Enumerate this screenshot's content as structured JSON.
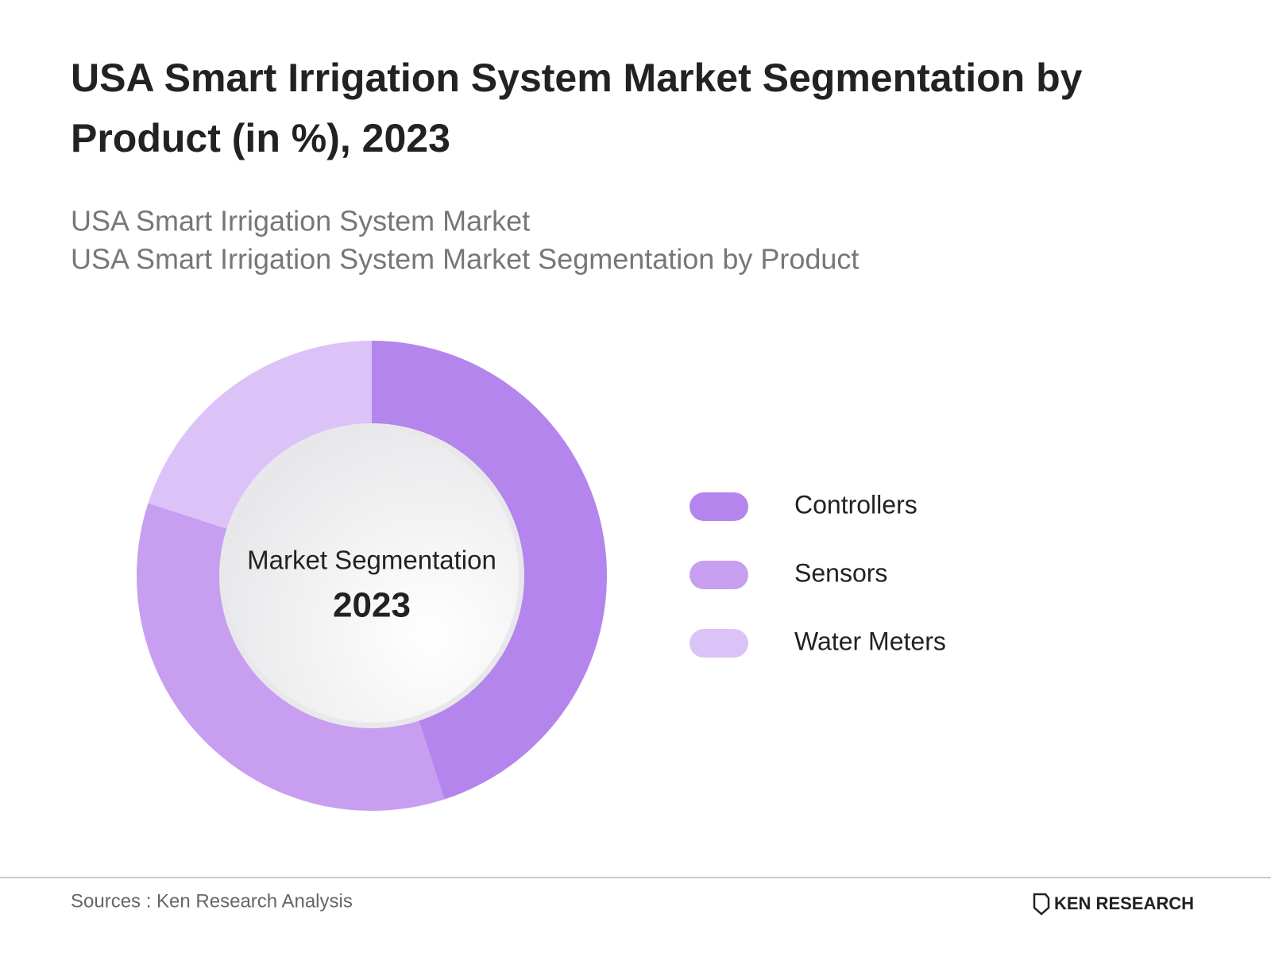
{
  "chart_data": {
    "type": "donut",
    "title": [
      "USA Smart Irrigation System Market Segmentation by",
      "Product (in %), 2023"
    ],
    "subtitle": [
      "USA Smart Irrigation System Market",
      "USA Smart Irrigation System Market Segmentation by Product"
    ],
    "center_text": [
      "Market Segmentation",
      "2023"
    ],
    "categories": [
      "Controllers",
      "Sensors",
      "Water Meters"
    ],
    "values": [
      45,
      35,
      20
    ],
    "colors": [
      "#b485ec",
      "#c79ef0",
      "#dcc3f7"
    ],
    "legend": "right",
    "source": "Sources : Ken Research Analysis",
    "brand": "KEN RESEARCH"
  }
}
